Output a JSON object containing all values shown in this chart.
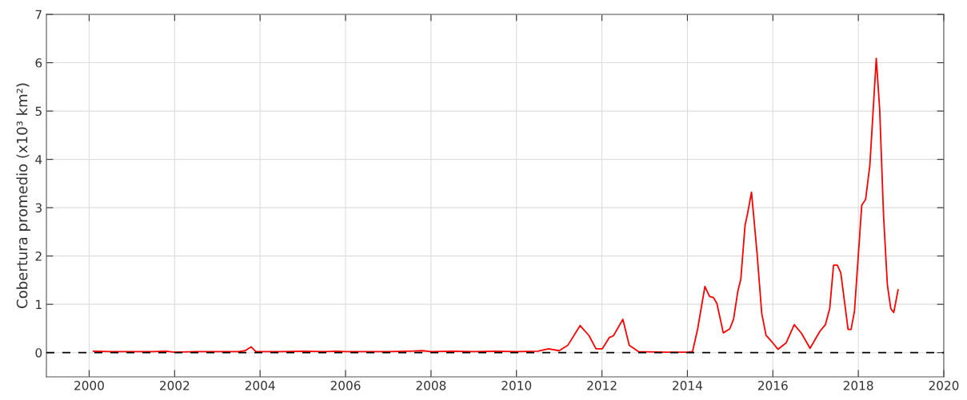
{
  "chart_data": {
    "type": "line",
    "ylabel": "Cobertura promedio (x10³ km²)",
    "xlim": [
      1999,
      2020
    ],
    "xticks": [
      2000,
      2002,
      2004,
      2006,
      2008,
      2010,
      2012,
      2014,
      2016,
      2018,
      2020
    ],
    "ylim": [
      -0.5,
      7
    ],
    "yticks": [
      0,
      1,
      2,
      3,
      4,
      5,
      6,
      7
    ],
    "grid": true,
    "marker": "none",
    "line_style": "solid",
    "ref_lines": [
      {
        "axis": "y",
        "value": 0,
        "color": "#000000",
        "line_style": "dashed"
      }
    ],
    "series": [
      {
        "color": "#ff0000",
        "x": [
          2000.1,
          2000.5,
          2001.0,
          2001.5,
          2001.8,
          2002.0,
          2002.5,
          2003.0,
          2003.5,
          2003.65,
          2003.79,
          2003.9,
          2004.5,
          2005.0,
          2005.5,
          2005.8,
          2006.0,
          2006.5,
          2007.0,
          2007.5,
          2007.8,
          2008.0,
          2008.5,
          2009.0,
          2009.5,
          2010.0,
          2010.5,
          2010.75,
          2011.0,
          2011.2,
          2011.49,
          2011.7,
          2011.86,
          2012.01,
          2012.17,
          2012.27,
          2012.49,
          2012.64,
          2012.86,
          2013.5,
          2014.01,
          2014.12,
          2014.24,
          2014.41,
          2014.52,
          2014.61,
          2014.69,
          2014.84,
          2014.99,
          2015.08,
          2015.18,
          2015.25,
          2015.35,
          2015.4,
          2015.5,
          2015.63,
          2015.74,
          2015.84,
          2015.99,
          2016.12,
          2016.31,
          2016.5,
          2016.67,
          2016.87,
          2017.1,
          2017.23,
          2017.33,
          2017.42,
          2017.51,
          2017.59,
          2017.76,
          2017.83,
          2017.91,
          2018.08,
          2018.17,
          2018.27,
          2018.42,
          2018.5,
          2018.59,
          2018.68,
          2018.76,
          2018.83,
          2018.93
        ],
        "values": [
          0.03,
          0.02,
          0.02,
          0.02,
          0.03,
          0.01,
          0.02,
          0.02,
          0.02,
          0.04,
          0.12,
          0.02,
          0.02,
          0.03,
          0.02,
          0.03,
          0.02,
          0.02,
          0.02,
          0.03,
          0.04,
          0.02,
          0.03,
          0.02,
          0.03,
          0.02,
          0.03,
          0.08,
          0.04,
          0.15,
          0.56,
          0.35,
          0.08,
          0.08,
          0.31,
          0.35,
          0.69,
          0.15,
          0.02,
          0.01,
          0.01,
          0.02,
          0.49,
          1.37,
          1.16,
          1.14,
          1.02,
          0.41,
          0.49,
          0.69,
          1.27,
          1.52,
          2.64,
          2.84,
          3.32,
          2.06,
          0.81,
          0.36,
          0.21,
          0.07,
          0.2,
          0.58,
          0.4,
          0.09,
          0.44,
          0.58,
          0.91,
          1.81,
          1.81,
          1.65,
          0.48,
          0.48,
          0.86,
          3.05,
          3.17,
          3.88,
          6.09,
          5.03,
          2.84,
          1.4,
          0.91,
          0.83,
          1.3
        ]
      }
    ]
  }
}
